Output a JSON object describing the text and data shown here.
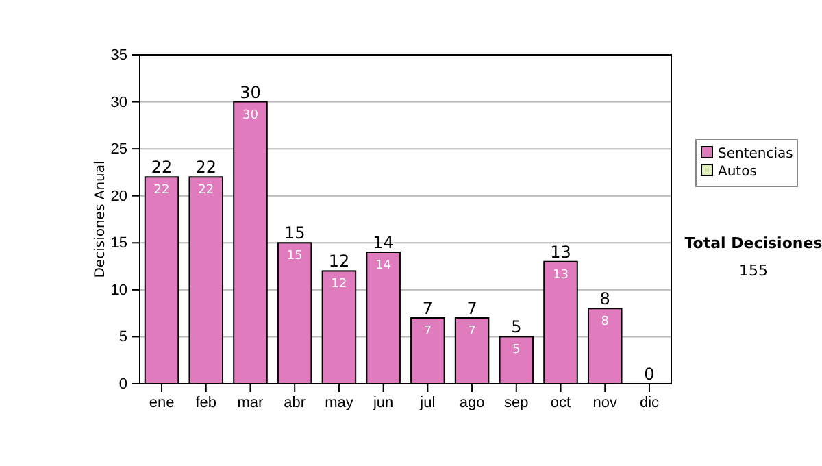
{
  "chart_data": {
    "type": "bar",
    "stacked": true,
    "ylabel": "Decisiones Anual",
    "categories": [
      "ene",
      "feb",
      "mar",
      "abr",
      "may",
      "jun",
      "jul",
      "ago",
      "sep",
      "oct",
      "nov",
      "dic"
    ],
    "series": [
      {
        "name": "Sentencias",
        "color": "#e07cbe",
        "values": [
          22,
          22,
          30,
          15,
          12,
          14,
          7,
          7,
          5,
          13,
          8,
          0
        ],
        "value_labels": [
          "22",
          "22",
          "30",
          "15",
          "12",
          "14",
          "7",
          "7",
          "5",
          "13",
          "8",
          null
        ]
      },
      {
        "name": "Autos",
        "color": "#ddeebb",
        "values": [
          0,
          0,
          0,
          0,
          0,
          0,
          0,
          0,
          0,
          0,
          0,
          0
        ],
        "value_labels": [
          null,
          null,
          null,
          null,
          null,
          null,
          null,
          null,
          null,
          null,
          null,
          null
        ]
      }
    ],
    "totals": [
      "22",
      "22",
      "30",
      "15",
      "12",
      "14",
      "7",
      "7",
      "5",
      "13",
      "8",
      "0"
    ],
    "ylim": [
      0,
      35
    ],
    "yticks": [
      0,
      5,
      10,
      15,
      20,
      25,
      30,
      35
    ],
    "grid": "y",
    "legend": "right",
    "annotations": [
      "Total Decisiones",
      "155"
    ]
  }
}
